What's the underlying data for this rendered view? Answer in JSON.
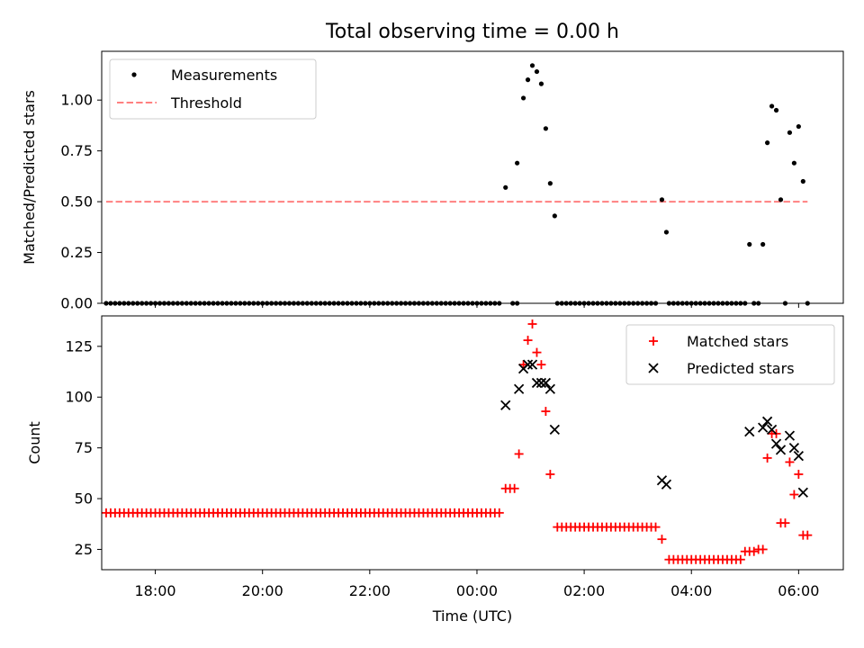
{
  "title": "Total observing time = 0.00 h",
  "colors": {
    "measurement": "#000000",
    "threshold": "#ff8080",
    "matched": "#ff0000",
    "predicted": "#000000"
  },
  "chart_data": [
    {
      "type": "scatter",
      "panel": "top",
      "ylabel": "Matched/Predicted stars",
      "xlabel": "",
      "xlim": [
        "17:00",
        "06:50"
      ],
      "ylim": [
        0,
        1.24
      ],
      "yticks": [
        "0.00",
        "0.25",
        "0.50",
        "0.75",
        "1.00"
      ],
      "legend": {
        "position": "top-left",
        "entries": [
          {
            "label": "Measurements",
            "marker": "dot",
            "color": "#000000"
          },
          {
            "label": "Threshold",
            "marker": "dashed-line",
            "color": "#ff8080"
          }
        ]
      },
      "series": [
        {
          "name": "Measurements",
          "zero_runs": [
            {
              "start": "17:05",
              "end": "00:27",
              "step_min": 5
            },
            {
              "start": "00:40",
              "end": "00:45",
              "step_min": 5
            },
            {
              "start": "01:30",
              "end": "03:20",
              "step_min": 5
            },
            {
              "start": "03:35",
              "end": "05:00",
              "step_min": 5
            },
            {
              "start": "05:10",
              "end": "05:15",
              "step_min": 5
            },
            {
              "start": "05:45",
              "end": "05:45",
              "step_min": 5
            },
            {
              "start": "06:10",
              "end": "06:10",
              "step_min": 5
            }
          ],
          "points": [
            [
              "00:32",
              0.57
            ],
            [
              "00:45",
              0.69
            ],
            [
              "00:52",
              1.01
            ],
            [
              "00:57",
              1.1
            ],
            [
              "01:02",
              1.17
            ],
            [
              "01:07",
              1.14
            ],
            [
              "01:12",
              1.08
            ],
            [
              "01:17",
              0.86
            ],
            [
              "01:22",
              0.59
            ],
            [
              "01:27",
              0.43
            ],
            [
              "03:27",
              0.51
            ],
            [
              "03:32",
              0.35
            ],
            [
              "05:05",
              0.29
            ],
            [
              "05:20",
              0.29
            ],
            [
              "05:25",
              0.79
            ],
            [
              "05:30",
              0.97
            ],
            [
              "05:35",
              0.95
            ],
            [
              "05:40",
              0.51
            ],
            [
              "05:50",
              0.84
            ],
            [
              "05:55",
              0.69
            ],
            [
              "06:00",
              0.87
            ],
            [
              "06:05",
              0.6
            ]
          ]
        },
        {
          "name": "Threshold",
          "type": "line",
          "points": [
            [
              "17:05",
              0.5
            ],
            [
              "06:10",
              0.5
            ]
          ]
        }
      ]
    },
    {
      "type": "scatter",
      "panel": "bottom",
      "ylabel": "Count",
      "xlabel": "Time (UTC)",
      "xlim": [
        "17:00",
        "06:50"
      ],
      "ylim": [
        15,
        140
      ],
      "yticks": [
        "25",
        "50",
        "75",
        "100",
        "125"
      ],
      "xticks": [
        "18:00",
        "20:00",
        "22:00",
        "00:00",
        "02:00",
        "04:00",
        "06:00"
      ],
      "legend": {
        "position": "top-right",
        "entries": [
          {
            "label": "Matched stars",
            "marker": "plus",
            "color": "#ff0000"
          },
          {
            "label": "Predicted stars",
            "marker": "x",
            "color": "#000000"
          }
        ]
      },
      "series": [
        {
          "name": "Matched stars",
          "runs": [
            {
              "start": "17:05",
              "end": "00:27",
              "step_min": 5,
              "value": 43
            },
            {
              "start": "01:30",
              "end": "03:20",
              "step_min": 5,
              "value": 36
            },
            {
              "start": "03:35",
              "end": "04:55",
              "step_min": 5,
              "value": 20
            }
          ],
          "points": [
            [
              "00:32",
              55
            ],
            [
              "00:37",
              55
            ],
            [
              "00:42",
              55
            ],
            [
              "00:47",
              72
            ],
            [
              "00:52",
              116
            ],
            [
              "00:57",
              128
            ],
            [
              "01:02",
              136
            ],
            [
              "01:07",
              122
            ],
            [
              "01:12",
              116
            ],
            [
              "01:17",
              93
            ],
            [
              "01:22",
              62
            ],
            [
              "03:27",
              30
            ],
            [
              "05:00",
              24
            ],
            [
              "05:05",
              24
            ],
            [
              "05:10",
              24
            ],
            [
              "05:15",
              25
            ],
            [
              "05:20",
              25
            ],
            [
              "05:25",
              70
            ],
            [
              "05:30",
              82
            ],
            [
              "05:35",
              82
            ],
            [
              "05:40",
              38
            ],
            [
              "05:45",
              38
            ],
            [
              "05:50",
              68
            ],
            [
              "05:55",
              52
            ],
            [
              "06:00",
              62
            ],
            [
              "06:05",
              32
            ],
            [
              "06:10",
              32
            ]
          ]
        },
        {
          "name": "Predicted stars",
          "points": [
            [
              "00:32",
              96
            ],
            [
              "00:47",
              104
            ],
            [
              "00:52",
              114
            ],
            [
              "00:57",
              116
            ],
            [
              "01:02",
              116
            ],
            [
              "01:07",
              107
            ],
            [
              "01:12",
              107
            ],
            [
              "01:17",
              107
            ],
            [
              "01:22",
              104
            ],
            [
              "01:27",
              84
            ],
            [
              "03:27",
              59
            ],
            [
              "03:32",
              57
            ],
            [
              "05:05",
              83
            ],
            [
              "05:20",
              85
            ],
            [
              "05:25",
              88
            ],
            [
              "05:30",
              84
            ],
            [
              "05:35",
              77
            ],
            [
              "05:40",
              74
            ],
            [
              "05:50",
              81
            ],
            [
              "05:55",
              75
            ],
            [
              "06:00",
              71
            ],
            [
              "06:05",
              53
            ]
          ]
        }
      ]
    }
  ]
}
